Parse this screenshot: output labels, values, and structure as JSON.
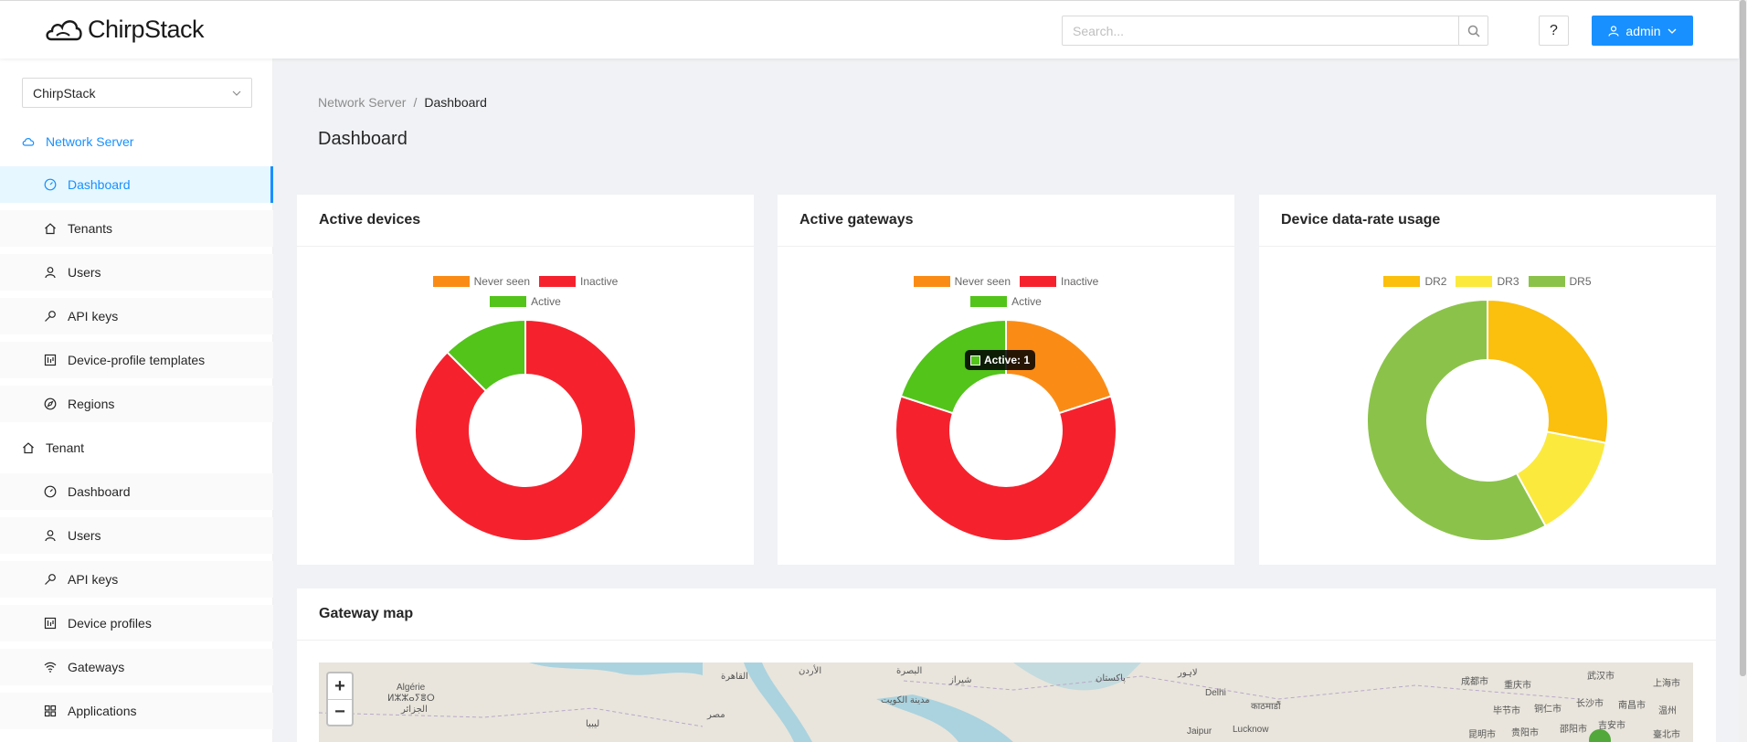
{
  "app": {
    "logo_text": "ChirpStack"
  },
  "header": {
    "search_placeholder": "Search...",
    "help_label": "?",
    "user_label": "admin"
  },
  "sidebar": {
    "tenant_select": "ChirpStack",
    "network_server": {
      "label": "Network Server",
      "items": [
        {
          "label": "Dashboard",
          "icon": "dashboard-icon"
        },
        {
          "label": "Tenants",
          "icon": "home-icon"
        },
        {
          "label": "Users",
          "icon": "user-icon"
        },
        {
          "label": "API keys",
          "icon": "key-icon"
        },
        {
          "label": "Device-profile templates",
          "icon": "template-icon"
        },
        {
          "label": "Regions",
          "icon": "compass-icon"
        }
      ]
    },
    "tenant": {
      "label": "Tenant",
      "items": [
        {
          "label": "Dashboard",
          "icon": "dashboard-icon"
        },
        {
          "label": "Users",
          "icon": "user-icon"
        },
        {
          "label": "API keys",
          "icon": "key-icon"
        },
        {
          "label": "Device profiles",
          "icon": "template-icon"
        },
        {
          "label": "Gateways",
          "icon": "wifi-icon"
        },
        {
          "label": "Applications",
          "icon": "grid-icon"
        }
      ]
    }
  },
  "breadcrumb": {
    "parent": "Network Server",
    "separator": "/",
    "current": "Dashboard"
  },
  "page_title": "Dashboard",
  "cards": {
    "active_devices": {
      "title": "Active devices"
    },
    "active_gateways": {
      "title": "Active gateways",
      "tooltip": "Active: 1"
    },
    "dr_usage": {
      "title": "Device data-rate usage"
    },
    "gateway_map": {
      "title": "Gateway map",
      "zoom_in": "+",
      "zoom_out": "−"
    }
  },
  "map_labels": [
    "Algérie",
    "ⵍⵣⵣⴰⵢⴻⵔ",
    "الجزائر",
    "القاهرة",
    "مصر",
    "الأردن",
    "ليبيا",
    "البصرة",
    "مدينة الكويت",
    "شيراز",
    "پاکستان",
    "لاہور",
    "Delhi",
    "Jaipur",
    "Lucknow",
    "काठमाडौं",
    "成都市",
    "重庆市",
    "毕节市",
    "铜仁市",
    "长沙市",
    "武汉市",
    "南昌市",
    "上海市",
    "温州",
    "昆明市",
    "贵阳市",
    "邵阳市",
    "吉安市",
    "臺北市"
  ],
  "chart_data": [
    {
      "type": "pie",
      "title": "Active devices",
      "categories": [
        "Never seen",
        "Inactive",
        "Active"
      ],
      "values": [
        0,
        7,
        1
      ],
      "colors": [
        "#fa8c16",
        "#f5222d",
        "#52c41a"
      ],
      "legend": "top"
    },
    {
      "type": "pie",
      "title": "Active gateways",
      "categories": [
        "Never seen",
        "Inactive",
        "Active"
      ],
      "values": [
        1,
        3,
        1
      ],
      "colors": [
        "#fa8c16",
        "#f5222d",
        "#52c41a"
      ],
      "legend": "top"
    },
    {
      "type": "pie",
      "title": "Device data-rate usage",
      "categories": [
        "DR2",
        "DR3",
        "DR5"
      ],
      "values": [
        28,
        14,
        58
      ],
      "colors": [
        "#fbbf0d",
        "#fbe93e",
        "#8bc34a"
      ],
      "legend": "top"
    }
  ]
}
